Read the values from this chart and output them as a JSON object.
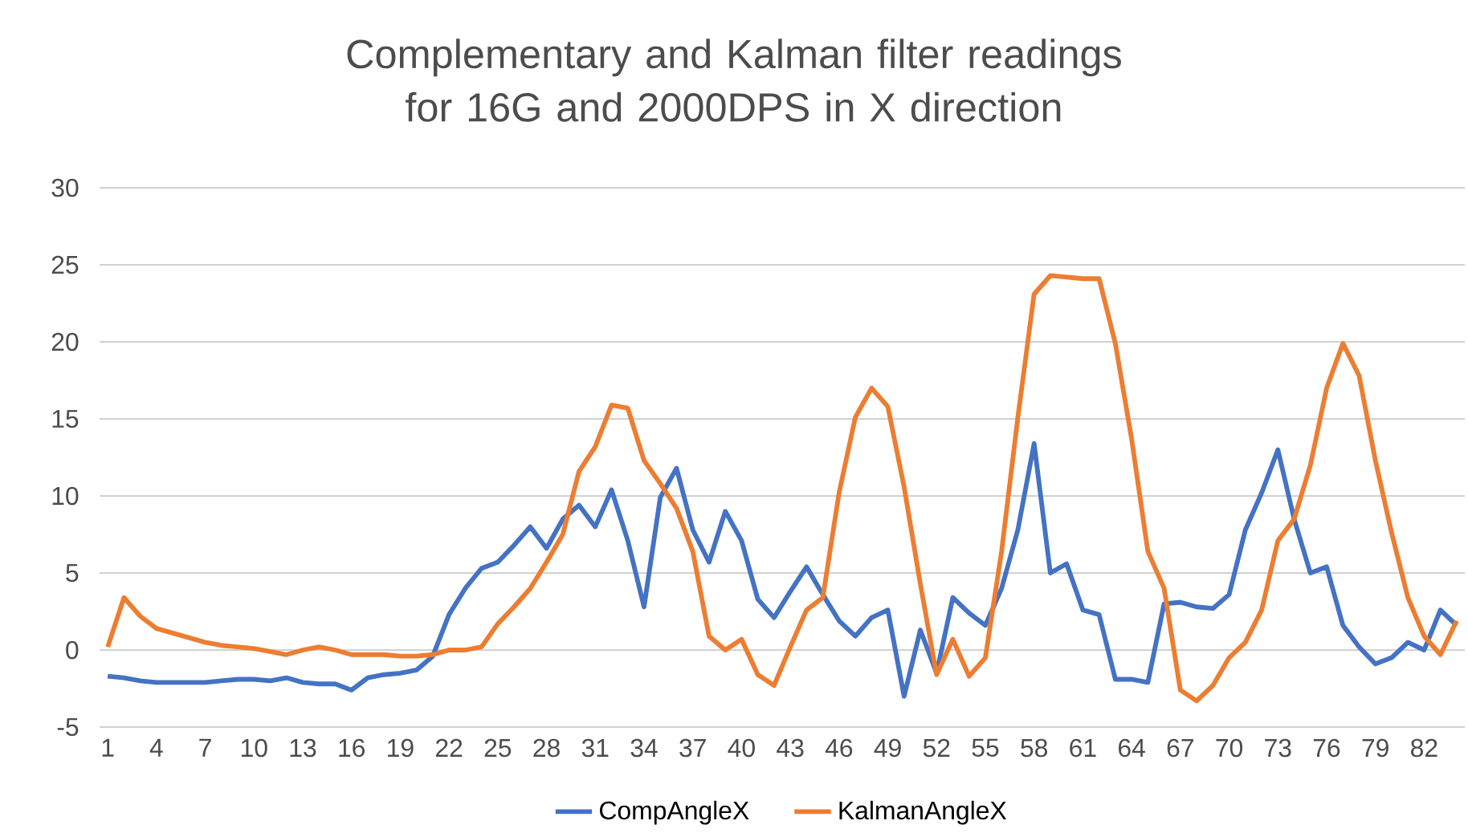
{
  "chart_data": {
    "type": "line",
    "title": "Complementary and Kalman filter readings for 16G and 2000DPS in X direction",
    "categories": [
      "1",
      null,
      null,
      "4",
      null,
      null,
      "7",
      null,
      null,
      "10",
      null,
      null,
      "13",
      null,
      null,
      "16",
      null,
      null,
      "19",
      null,
      null,
      "22",
      null,
      null,
      "25",
      null,
      null,
      "28",
      null,
      null,
      "31",
      null,
      null,
      "34",
      null,
      null,
      "37",
      null,
      null,
      "40",
      null,
      null,
      "43",
      null,
      null,
      "46",
      null,
      null,
      "49",
      null,
      null,
      "52",
      null,
      null,
      "55",
      null,
      null,
      "58",
      null,
      null,
      "61",
      null,
      null,
      "64",
      null,
      null,
      "67",
      null,
      null,
      "70",
      null,
      null,
      "73",
      null,
      null,
      "76",
      null,
      null,
      "79",
      null,
      null,
      "82",
      null,
      null
    ],
    "series": [
      {
        "name": "CompAngleX",
        "color": "#4472c4",
        "values": [
          -1.7,
          -1.8,
          -2.0,
          -2.1,
          -2.1,
          -2.1,
          -2.1,
          -2.0,
          -1.9,
          -1.9,
          -2.0,
          -1.8,
          -2.1,
          -2.2,
          -2.2,
          -2.6,
          -1.8,
          -1.6,
          -1.5,
          -1.3,
          -0.4,
          2.3,
          4.0,
          5.3,
          5.7,
          6.8,
          8.0,
          6.6,
          8.5,
          9.4,
          8.0,
          10.4,
          7.1,
          2.8,
          9.9,
          11.8,
          7.8,
          5.7,
          9.0,
          7.1,
          3.3,
          2.1,
          3.8,
          5.4,
          3.6,
          1.9,
          0.9,
          2.1,
          2.6,
          -3.0,
          1.3,
          -1.5,
          3.4,
          2.4,
          1.6,
          4.0,
          7.8,
          13.4,
          5.0,
          5.6,
          2.6,
          2.3,
          -1.9,
          -1.9,
          -2.1,
          3.0,
          3.1,
          2.8,
          2.7,
          3.6,
          7.8,
          10.2,
          13.0,
          8.5,
          5.0,
          5.4,
          1.6,
          0.2,
          -0.9,
          -0.5,
          0.5,
          0.0,
          2.6,
          1.6
        ]
      },
      {
        "name": "KalmanAngleX",
        "color": "#ed7d31",
        "values": [
          0.2,
          3.4,
          2.2,
          1.4,
          1.1,
          0.8,
          0.5,
          0.3,
          0.2,
          0.1,
          -0.1,
          -0.3,
          0.0,
          0.2,
          0.0,
          -0.3,
          -0.3,
          -0.3,
          -0.4,
          -0.4,
          -0.3,
          0.0,
          0.0,
          0.2,
          1.7,
          2.8,
          4.0,
          5.7,
          7.5,
          11.6,
          13.2,
          15.9,
          15.7,
          12.3,
          10.8,
          9.2,
          6.4,
          0.9,
          0.0,
          0.7,
          -1.6,
          -2.3,
          0.2,
          2.6,
          3.4,
          10.2,
          15.1,
          17.0,
          15.8,
          10.6,
          4.3,
          -1.6,
          0.7,
          -1.7,
          -0.5,
          6.4,
          15.1,
          23.1,
          24.3,
          24.2,
          24.1,
          24.1,
          19.9,
          13.7,
          6.4,
          4.0,
          -2.6,
          -3.3,
          -2.3,
          -0.5,
          0.5,
          2.6,
          7.1,
          8.5,
          12.0,
          17.0,
          19.9,
          17.8,
          12.3,
          7.6,
          3.4,
          0.9,
          -0.3,
          1.9
        ]
      }
    ],
    "ylim": [
      -5,
      30
    ],
    "yticks": [
      -5,
      0,
      5,
      10,
      15,
      20,
      25,
      30
    ],
    "grid": "y",
    "legend": "bottom",
    "marker": "none",
    "line_style": "solid"
  }
}
